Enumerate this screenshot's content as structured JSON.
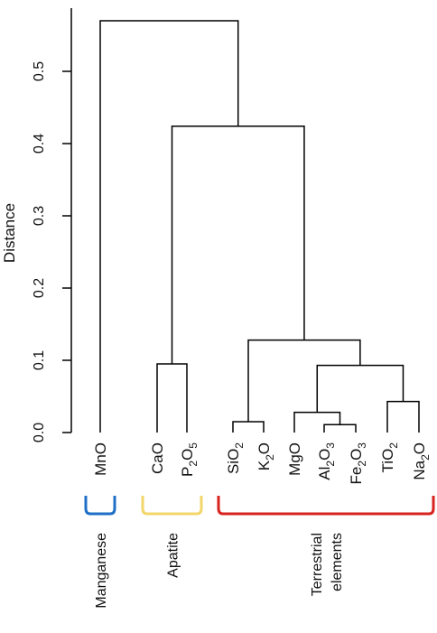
{
  "chart_data": {
    "type": "dendrogram",
    "ylabel": "Distance",
    "ylim": [
      0,
      0.57
    ],
    "yticks": [
      "0.0",
      "0.1",
      "0.2",
      "0.3",
      "0.4",
      "0.5"
    ],
    "ytick_values": [
      0,
      0.1,
      0.2,
      0.3,
      0.4,
      0.5
    ],
    "leaves": [
      {
        "base": "MnO",
        "sub": ""
      },
      {
        "base": "CaO",
        "sub": ""
      },
      {
        "base": "P",
        "sub": "2",
        "rest": "O",
        "sub2": "5"
      },
      {
        "base": "SiO",
        "sub": "2"
      },
      {
        "base": "K",
        "sub": "2",
        "rest": "O"
      },
      {
        "base": "MgO",
        "sub": ""
      },
      {
        "base": "Al",
        "sub": "2",
        "rest": "O",
        "sub2": "3"
      },
      {
        "base": "Fe",
        "sub": "2",
        "rest": "O",
        "sub2": "3"
      },
      {
        "base": "TiO",
        "sub": "2"
      },
      {
        "base": "Na",
        "sub": "2",
        "rest": "O"
      }
    ],
    "merges": [
      {
        "left": 3,
        "right": 4,
        "height": 0.015
      },
      {
        "left": 6,
        "right": 7,
        "height": 0.011
      },
      {
        "left": 5,
        "right": "m2",
        "height": 0.028
      },
      {
        "left": 8,
        "right": 9,
        "height": 0.043
      },
      {
        "left": "m3",
        "right": "m4",
        "height": 0.093
      },
      {
        "left": "m1",
        "right": "m5",
        "height": 0.128
      },
      {
        "left": 1,
        "right": 2,
        "height": 0.095
      },
      {
        "left": "m7",
        "right": "m6",
        "height": 0.424
      },
      {
        "left": 0,
        "right": "m8",
        "height": 0.57
      }
    ],
    "groups": [
      {
        "label": [
          "Manganese"
        ],
        "from": 0,
        "to": 0,
        "color": "#1f6fc6"
      },
      {
        "label": [
          "Apatite"
        ],
        "from": 1,
        "to": 2,
        "color": "#f2d66a"
      },
      {
        "label": [
          "Terrestrial",
          "elements"
        ],
        "from": 3,
        "to": 9,
        "color": "#d8231f"
      }
    ]
  }
}
